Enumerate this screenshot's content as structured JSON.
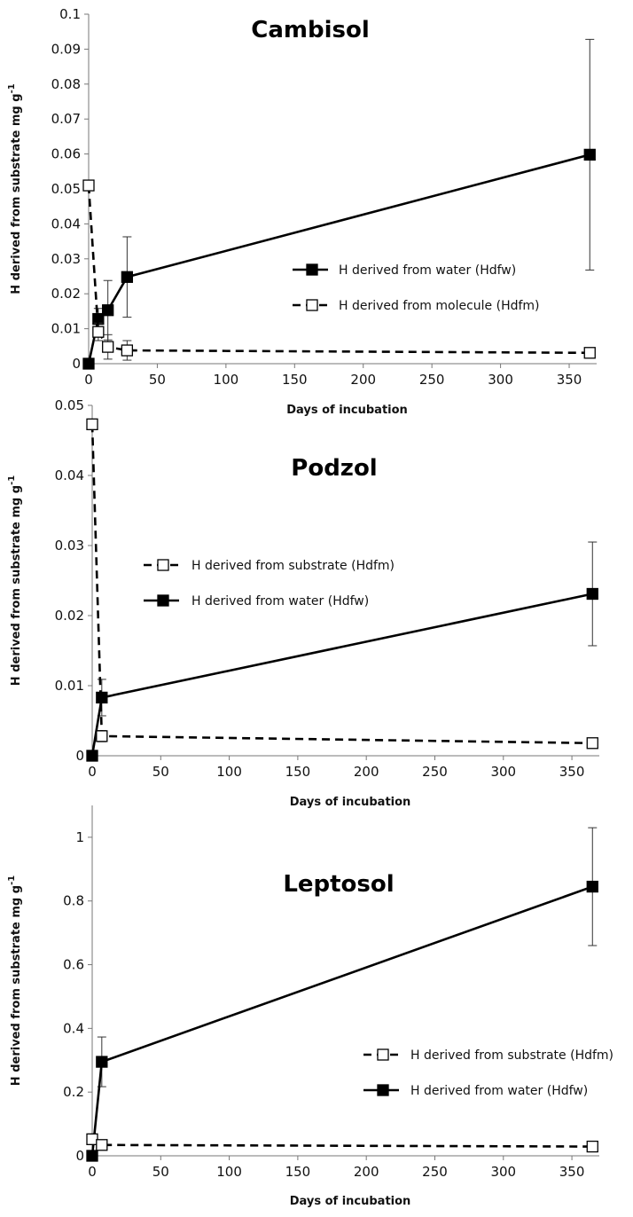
{
  "chart_data": [
    {
      "type": "line",
      "title": "Cambisol",
      "xlabel": "Days of incubation",
      "ylabel": "H derived from substrate mg g",
      "ylabel_sup": "-1",
      "xlim": [
        0,
        370
      ],
      "ylim": [
        0,
        0.1
      ],
      "xticks": [
        "0",
        "50",
        "100",
        "150",
        "200",
        "250",
        "300",
        "350"
      ],
      "yticks": [
        "0",
        "0.01",
        "0.02",
        "0.03",
        "0.04",
        "0.05",
        "0.06",
        "0.07",
        "0.08",
        "0.09",
        "0.1"
      ],
      "legend_position": "middle-right",
      "series": [
        {
          "name": "H derived from water (Hdfw)",
          "style": "solid",
          "marker": "filled-square",
          "x": [
            0,
            7,
            14,
            28,
            365
          ],
          "y": [
            0,
            0.0128,
            0.0153,
            0.0248,
            0.0598
          ],
          "err": [
            0,
            0.003,
            0.0085,
            0.0115,
            0.033
          ]
        },
        {
          "name": "H derived from molecule (Hdfm)",
          "style": "dashed",
          "marker": "open-square",
          "x": [
            0,
            7,
            14,
            28,
            365
          ],
          "y": [
            0.051,
            0.0091,
            0.0048,
            0.0038,
            0.0031
          ],
          "err": [
            0,
            0.0025,
            0.0035,
            0.0028,
            0.0008
          ]
        }
      ],
      "legend_order": [
        0,
        1
      ]
    },
    {
      "type": "line",
      "title": "Podzol",
      "xlabel": "Days of incubation",
      "ylabel": "H derived from substrate mg g",
      "ylabel_sup": "-1",
      "xlim": [
        0,
        370
      ],
      "ylim": [
        0,
        0.05
      ],
      "xticks": [
        "0",
        "50",
        "100",
        "150",
        "200",
        "250",
        "300",
        "350"
      ],
      "yticks": [
        "0",
        "0.01",
        "0.02",
        "0.03",
        "0.04",
        "0.05"
      ],
      "legend_position": "middle-left",
      "series": [
        {
          "name": "H derived from water (Hdfw)",
          "style": "solid",
          "marker": "filled-square",
          "x": [
            0,
            7,
            365
          ],
          "y": [
            0,
            0.0083,
            0.0231
          ],
          "err": [
            0,
            0.0026,
            0.0074
          ]
        },
        {
          "name": "H derived from substrate (Hdfm)",
          "style": "dashed",
          "marker": "open-square",
          "x": [
            0,
            7,
            365
          ],
          "y": [
            0.0473,
            0.0028,
            0.0018
          ],
          "err": [
            0,
            0.0008,
            0.0004
          ]
        }
      ],
      "legend_order": [
        1,
        0
      ]
    },
    {
      "type": "line",
      "title": "Leptosol",
      "xlabel": "Days of incubation",
      "ylabel": "H derived from substrate mg g",
      "ylabel_sup": "-1",
      "xlim": [
        0,
        370
      ],
      "ylim": [
        0,
        1.1
      ],
      "xticks": [
        "0",
        "50",
        "100",
        "150",
        "200",
        "250",
        "300",
        "350"
      ],
      "yticks": [
        "0",
        "0.2",
        "0.4",
        "0.6",
        "0.8",
        "1"
      ],
      "legend_position": "bottom-right",
      "series": [
        {
          "name": "H derived from water (Hdfw)",
          "style": "solid",
          "marker": "filled-square",
          "x": [
            0,
            7,
            365
          ],
          "y": [
            0,
            0.295,
            0.845
          ],
          "err": [
            0,
            0.078,
            0.185
          ]
        },
        {
          "name": "H derived from substrate (Hdfm)",
          "style": "dashed",
          "marker": "open-square",
          "x": [
            0,
            7,
            365
          ],
          "y": [
            0.052,
            0.034,
            0.029
          ],
          "err": [
            0,
            0.004,
            0.004
          ]
        }
      ],
      "legend_order": [
        1,
        0
      ]
    }
  ]
}
